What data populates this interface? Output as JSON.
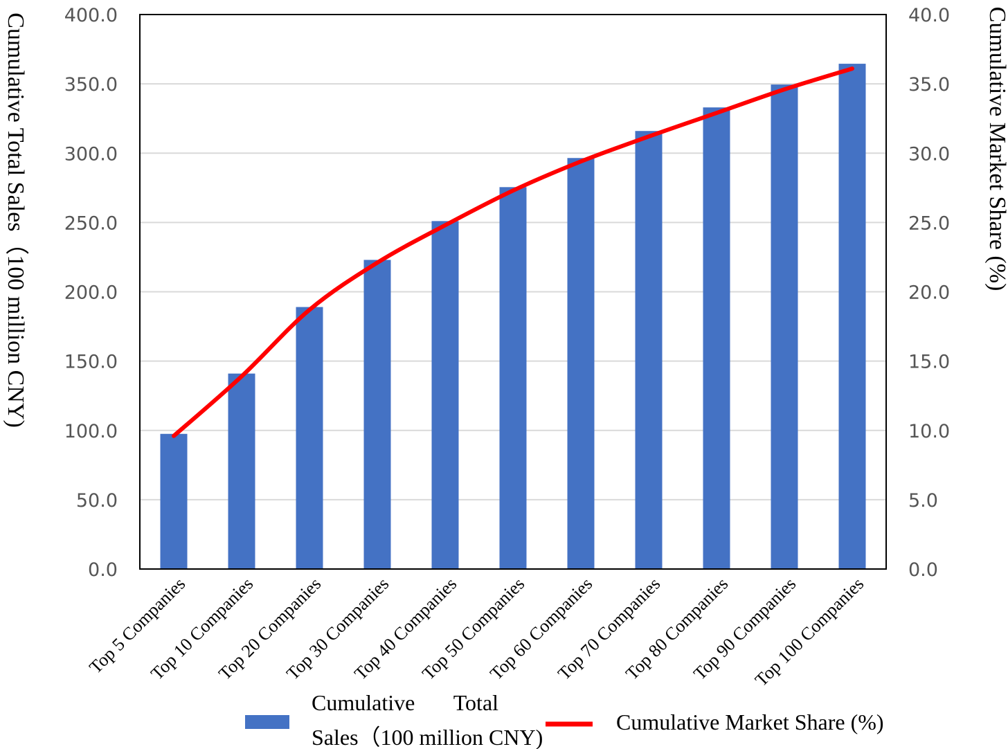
{
  "chart_data": {
    "type": "bar",
    "categories": [
      "Top 5 Companies",
      "Top 10 Companies",
      "Top 20 Companies",
      "Top 30 Companies",
      "Top 40 Companies",
      "Top 50 Companies",
      "Top 60 Companies",
      "Top 70 Companies",
      "Top 80 Companies",
      "Top 90 Companies",
      "Top 100 Companies"
    ],
    "series": [
      {
        "name": "Cumulative Total Sales（100 million CNY)",
        "type": "bar",
        "axis": "left",
        "color": "#4472C4",
        "values": [
          97.5,
          141.0,
          189.0,
          223.0,
          251.0,
          275.5,
          296.5,
          316.0,
          333.0,
          349.5,
          364.5
        ]
      },
      {
        "name": "Cumulative Market Share (%)",
        "type": "line",
        "axis": "right",
        "color": "#FF0000",
        "values": [
          9.6,
          13.9,
          18.7,
          22.1,
          24.8,
          27.3,
          29.4,
          31.2,
          32.9,
          34.6,
          36.1
        ]
      }
    ],
    "ylabel": "Cumulative Total Sales（100 million CNY)",
    "y2label": "Cumulative Market Share (%)",
    "ylim": [
      0,
      400
    ],
    "y2lim": [
      0,
      40
    ],
    "yticks": [
      "0.0",
      "50.0",
      "100.0",
      "150.0",
      "200.0",
      "250.0",
      "300.0",
      "350.0",
      "400.0"
    ],
    "y2ticks": [
      "0.0",
      "5.0",
      "10.0",
      "15.0",
      "20.0",
      "25.0",
      "30.0",
      "35.0",
      "40.0"
    ],
    "grid": true,
    "legend": {
      "placement": "bottom",
      "bar_label_line1": "Cumulative       Total",
      "bar_label_line2": "Sales（100 million CNY)",
      "line_label": "Cumulative Market Share (%)"
    }
  }
}
